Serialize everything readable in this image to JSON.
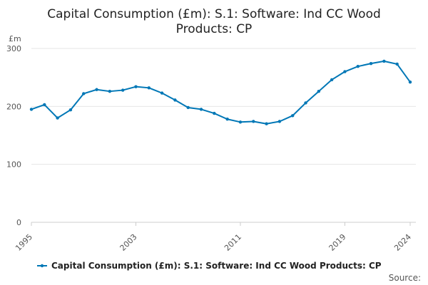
{
  "chart_data": {
    "type": "line",
    "title": "Capital Consumption (£m): S.1: Software: Ind CC Wood Products: CP",
    "title_lines": [
      "Capital Consumption (£m): S.1: Software: Ind CC Wood",
      "Products: CP"
    ],
    "ylabel": "£m",
    "xlabel": "",
    "ylim": [
      0,
      300
    ],
    "xlim": [
      1995,
      2024
    ],
    "yticks": [
      0,
      100,
      200,
      300
    ],
    "xticks": [
      "1995",
      "2003",
      "2011",
      "2019",
      "2024"
    ],
    "grid": true,
    "legend_position": "bottom",
    "color": "#0077b6",
    "series": [
      {
        "name": "Capital Consumption (£m): S.1: Software: Ind CC Wood Products: CP",
        "x": [
          1995,
          1996,
          1997,
          1998,
          1999,
          2000,
          2001,
          2002,
          2003,
          2004,
          2005,
          2006,
          2007,
          2008,
          2009,
          2010,
          2011,
          2012,
          2013,
          2014,
          2015,
          2016,
          2017,
          2018,
          2019,
          2020,
          2021,
          2022,
          2023,
          2024
        ],
        "values": [
          195,
          203,
          180,
          194,
          222,
          229,
          226,
          228,
          234,
          232,
          223,
          211,
          198,
          195,
          188,
          178,
          173,
          174,
          170,
          174,
          184,
          206,
          226,
          246,
          260,
          269,
          274,
          278,
          273,
          242
        ]
      }
    ],
    "source_label": "Source:"
  }
}
